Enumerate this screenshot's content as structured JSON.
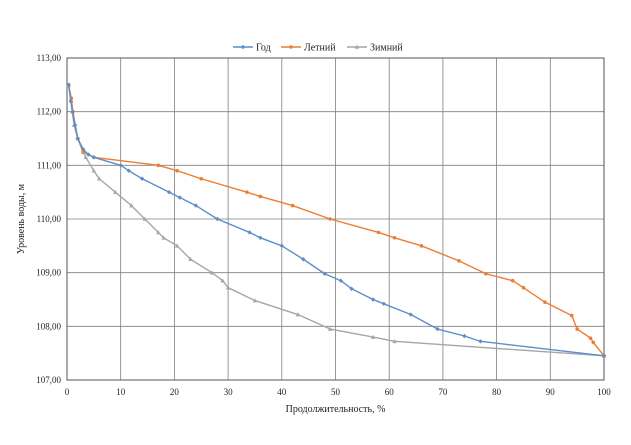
{
  "chart_data": {
    "type": "line",
    "xlabel": "Продолжительность, %",
    "ylabel": "Уровень воды, м",
    "xlim": [
      0,
      100
    ],
    "ylim": [
      107,
      113
    ],
    "x_ticks": [
      "0",
      "10",
      "20",
      "30",
      "40",
      "50",
      "60",
      "70",
      "80",
      "90",
      "100"
    ],
    "y_ticks": [
      "107,00",
      "108,00",
      "109,00",
      "110,00",
      "111,00",
      "112,00",
      "113,00"
    ],
    "grid": true,
    "legend_position": "top",
    "series": [
      {
        "name": "Год",
        "color": "#5b8fc9",
        "marker": "diamond",
        "points": [
          [
            0.3,
            112.5
          ],
          [
            0.7,
            112.2
          ],
          [
            1,
            112.0
          ],
          [
            1.5,
            111.75
          ],
          [
            2,
            111.5
          ],
          [
            3,
            111.3
          ],
          [
            4,
            111.2
          ],
          [
            5,
            111.15
          ],
          [
            10,
            111.0
          ],
          [
            11.5,
            110.9
          ],
          [
            14,
            110.75
          ],
          [
            19,
            110.5
          ],
          [
            21,
            110.4
          ],
          [
            24,
            110.25
          ],
          [
            28,
            110.0
          ],
          [
            34,
            109.75
          ],
          [
            36,
            109.65
          ],
          [
            40,
            109.5
          ],
          [
            44,
            109.25
          ],
          [
            48,
            108.98
          ],
          [
            51,
            108.85
          ],
          [
            53,
            108.7
          ],
          [
            57,
            108.5
          ],
          [
            59,
            108.42
          ],
          [
            64,
            108.22
          ],
          [
            69,
            107.95
          ],
          [
            74,
            107.82
          ],
          [
            77,
            107.72
          ],
          [
            100,
            107.45
          ]
        ]
      },
      {
        "name": "Летний",
        "color": "#ed7d31",
        "marker": "circle",
        "points": [
          [
            0.3,
            112.5
          ],
          [
            0.8,
            112.25
          ],
          [
            1.1,
            112.0
          ],
          [
            2,
            111.5
          ],
          [
            3,
            111.25
          ],
          [
            5,
            111.15
          ],
          [
            17,
            111.0
          ],
          [
            20.5,
            110.9
          ],
          [
            25,
            110.75
          ],
          [
            33.5,
            110.5
          ],
          [
            36,
            110.42
          ],
          [
            42,
            110.25
          ],
          [
            49,
            110.0
          ],
          [
            58,
            109.75
          ],
          [
            61,
            109.65
          ],
          [
            66,
            109.5
          ],
          [
            73,
            109.22
          ],
          [
            78,
            108.98
          ],
          [
            83,
            108.85
          ],
          [
            85,
            108.72
          ],
          [
            89,
            108.45
          ],
          [
            94,
            108.2
          ],
          [
            95,
            107.95
          ],
          [
            97.5,
            107.78
          ],
          [
            98,
            107.7
          ],
          [
            100,
            107.45
          ]
        ]
      },
      {
        "name": "Зимний",
        "color": "#a6a6a6",
        "marker": "triangle",
        "points": [
          [
            0.3,
            112.5
          ],
          [
            0.8,
            112.2
          ],
          [
            1,
            112.0
          ],
          [
            1.3,
            111.75
          ],
          [
            2,
            111.5
          ],
          [
            3,
            111.25
          ],
          [
            3.5,
            111.15
          ],
          [
            5,
            110.9
          ],
          [
            6,
            110.75
          ],
          [
            9,
            110.5
          ],
          [
            12,
            110.25
          ],
          [
            14.5,
            110.0
          ],
          [
            17,
            109.75
          ],
          [
            18,
            109.65
          ],
          [
            20.5,
            109.5
          ],
          [
            23,
            109.25
          ],
          [
            27,
            109.0
          ],
          [
            29,
            108.85
          ],
          [
            30,
            108.72
          ],
          [
            35,
            108.48
          ],
          [
            43,
            108.22
          ],
          [
            49,
            107.95
          ],
          [
            57,
            107.8
          ],
          [
            61,
            107.72
          ],
          [
            100,
            107.45
          ]
        ]
      }
    ]
  }
}
